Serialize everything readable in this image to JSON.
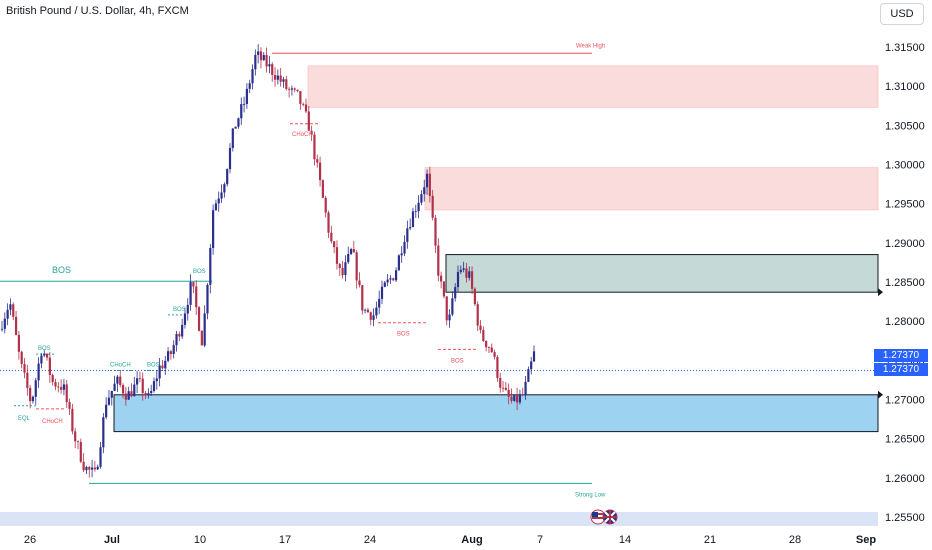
{
  "header": {
    "title": "British Pound / U.S. Dollar, 4h, FXCM",
    "currency": "USD"
  },
  "price_axis": {
    "ticks": [
      "1.31500",
      "1.31000",
      "1.30500",
      "1.30000",
      "1.29500",
      "1.29000",
      "1.28500",
      "1.28000",
      "1.27500",
      "1.27000",
      "1.26500",
      "1.26000",
      "1.25500"
    ],
    "last_price": "1.27370",
    "last_price_repeat": "1.27370"
  },
  "time_axis": {
    "labels": [
      "26",
      "Jul",
      "10",
      "17",
      "24",
      "Aug",
      "7",
      "14",
      "21",
      "28",
      "Sep"
    ]
  },
  "annotations": {
    "weak_high": "Weak High",
    "strong_low": "Strong Low",
    "bos": "BOS",
    "choch": "CHoCH",
    "eql": "EQL"
  },
  "colors": {
    "up": "#2a2e8c",
    "down": "#b2314a",
    "supply_zone": "#fbdcdc",
    "demand_zone": "#9dd3f0",
    "gray_zone": "#c5d9d6",
    "structure_line": "#27a59a",
    "level_line": "#f0525b",
    "last_price": "#2962ff"
  },
  "chart_data": {
    "type": "candlestick",
    "instrument": "British Pound / U.S. Dollar",
    "timeframe": "4h",
    "ylim": [
      1.2535,
      1.3185
    ],
    "y_ticks": [
      1.315,
      1.31,
      1.305,
      1.3,
      1.295,
      1.29,
      1.285,
      1.28,
      1.275,
      1.27,
      1.265,
      1.26,
      1.255
    ],
    "x_labels": [
      "26",
      "Jul",
      "10",
      "17",
      "24",
      "Aug",
      "7",
      "14",
      "21",
      "28",
      "Sep"
    ],
    "close_path": [
      1.279,
      1.2825,
      1.2745,
      1.2695,
      1.2768,
      1.2722,
      1.2716,
      1.2654,
      1.2613,
      1.2603,
      1.2698,
      1.2723,
      1.2705,
      1.2722,
      1.27,
      1.2741,
      1.2757,
      1.2795,
      1.2848,
      1.2772,
      1.2943,
      1.2978,
      1.3048,
      1.3082,
      1.314,
      1.3128,
      1.3112,
      1.3095,
      1.3085,
      1.3048,
      1.2975,
      1.2902,
      1.2855,
      1.2892,
      1.2815,
      1.2808,
      1.2843,
      1.2862,
      1.2915,
      1.2948,
      1.2985,
      1.2868,
      1.2795,
      1.287,
      1.2855,
      1.2782,
      1.2765,
      1.2712,
      1.2695,
      1.2706,
      1.2758
    ],
    "last_price": 1.2737,
    "zones": [
      {
        "kind": "supply",
        "top": 1.3126,
        "bottom": 1.3073
      },
      {
        "kind": "supply",
        "top": 1.2996,
        "bottom": 1.2942
      },
      {
        "kind": "gray",
        "top": 1.2885,
        "bottom": 1.2837
      },
      {
        "kind": "demand",
        "top": 1.2706,
        "bottom": 1.2659
      }
    ],
    "levels": [
      {
        "label": "Weak High",
        "price": 1.3142
      },
      {
        "label": "Strong Low",
        "price": 1.2593
      },
      {
        "label": "BOS",
        "price": 1.2851
      },
      {
        "label": "BOS",
        "price": 1.2798
      },
      {
        "label": "BOS",
        "price": 1.2764
      },
      {
        "label": "CHoCH",
        "price": 1.3052
      },
      {
        "label": "CHoCH",
        "price": 1.2688
      },
      {
        "label": "EQL",
        "price": 1.2692
      }
    ]
  }
}
